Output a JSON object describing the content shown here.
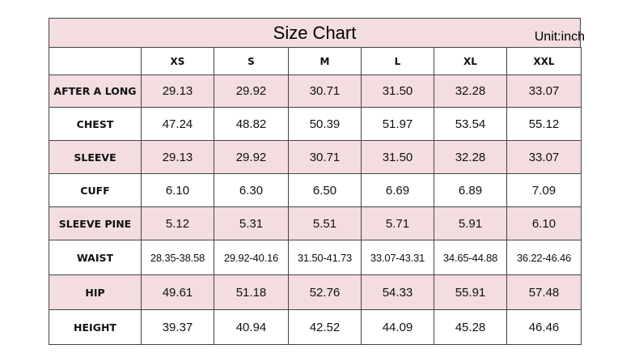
{
  "title": "Size Chart",
  "unit": "Unit:inch",
  "table": {
    "header": [
      "XS",
      "S",
      "M",
      "L",
      "XL",
      "XXL"
    ],
    "rows": [
      [
        "AFTER A LONG",
        "29.13",
        "29.92",
        "30.71",
        "31.50",
        "32.28",
        "33.07"
      ],
      [
        "CHEST",
        "47.24",
        "48.82",
        "50.39",
        "51.97",
        "53.54",
        "55.12"
      ],
      [
        "SLEEVE",
        "29.13",
        "29.92",
        "30.71",
        "31.50",
        "32.28",
        "33.07"
      ],
      [
        "CUFF",
        "6.10",
        "6.30",
        "6.50",
        "6.69",
        "6.89",
        "7.09"
      ],
      [
        "SLEEVE PINE",
        "5.12",
        "5.31",
        "5.51",
        "5.71",
        "5.91",
        "6.10"
      ],
      [
        "WAIST",
        "28.35-38.58",
        "29.92-40.16",
        "31.50-41.73",
        "33.07-43.31",
        "34.65-44.88",
        "36.22-46.46"
      ],
      [
        "HIP",
        "49.61",
        "51.18",
        "52.76",
        "54.33",
        "55.91",
        "57.48"
      ],
      [
        "HEIGHT",
        "39.37",
        "40.94",
        "42.52",
        "44.09",
        "45.28",
        "46.46"
      ]
    ]
  }
}
